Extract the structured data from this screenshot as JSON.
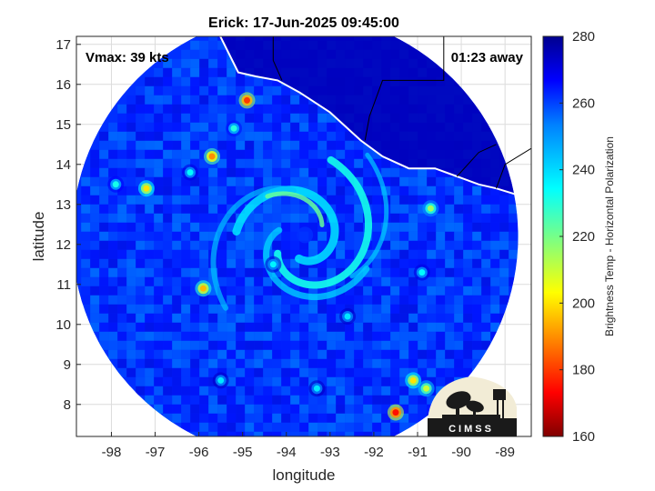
{
  "chart_data": {
    "type": "heatmap",
    "title": "Erick: 17-Jun-2025 09:45:00",
    "xlabel": "longitude",
    "ylabel": "latitude",
    "xlim": [
      -98.8,
      -88.4
    ],
    "ylim": [
      7.2,
      17.2
    ],
    "xticks": [
      -98,
      -97,
      -96,
      -95,
      -94,
      -93,
      -92,
      -91,
      -90,
      -89
    ],
    "yticks": [
      8,
      9,
      10,
      11,
      12,
      13,
      14,
      15,
      16,
      17
    ],
    "grid": true,
    "vmax_label": "Vmax: 39 kts",
    "time_label": "01:23 away",
    "colorbar": {
      "label": "Brightness Temp - Horizontal Polarization",
      "range": [
        160,
        280
      ],
      "ticks": [
        160,
        180,
        200,
        220,
        240,
        260,
        280
      ],
      "colormap": "jet"
    },
    "swath": {
      "center_lon": -93.8,
      "center_lat": 12.2,
      "radius_deg": 5.1,
      "background_value": 262
    },
    "storm_center": {
      "lon": -93.7,
      "lat": 12.1
    },
    "features": [
      {
        "lon": -94.9,
        "lat": 15.6,
        "value": 180
      },
      {
        "lon": -95.7,
        "lat": 14.2,
        "value": 190
      },
      {
        "lon": -97.2,
        "lat": 13.4,
        "value": 200
      },
      {
        "lon": -95.9,
        "lat": 10.9,
        "value": 195
      },
      {
        "lon": -91.5,
        "lat": 7.8,
        "value": 175
      },
      {
        "lon": -90.8,
        "lat": 8.4,
        "value": 210
      },
      {
        "lon": -91.1,
        "lat": 8.6,
        "value": 200
      },
      {
        "lon": -90.7,
        "lat": 12.9,
        "value": 215
      },
      {
        "lon": -95.2,
        "lat": 14.9,
        "value": 230
      },
      {
        "lon": -96.2,
        "lat": 13.8,
        "value": 235
      },
      {
        "lon": -97.9,
        "lat": 13.5,
        "value": 232
      },
      {
        "lon": -90.9,
        "lat": 11.3,
        "value": 235
      },
      {
        "lon": -94.3,
        "lat": 11.5,
        "value": 236
      },
      {
        "lon": -92.6,
        "lat": 10.2,
        "value": 238
      },
      {
        "lon": -93.3,
        "lat": 8.4,
        "value": 238
      },
      {
        "lon": -95.5,
        "lat": 8.6,
        "value": 238
      }
    ],
    "logo_text": "CIMSS"
  },
  "colors": {
    "coastline": "#ffffff",
    "border": "#000000",
    "grid": "#dcdcdc",
    "background": "#ffffff"
  }
}
